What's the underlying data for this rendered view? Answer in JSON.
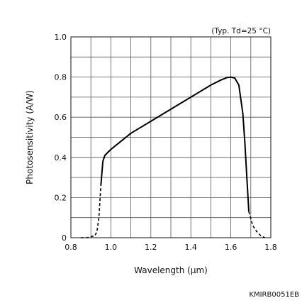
{
  "chart_data": {
    "type": "line",
    "title": "",
    "note": "(Typ. Td=25 °C)",
    "xlabel": "Wavelength (µm)",
    "ylabel": "Photosensitivity (A/W)",
    "xlim": [
      0.8,
      1.8
    ],
    "ylim": [
      0,
      1.0
    ],
    "x_ticks": [
      "0.8",
      "1.0",
      "1.2",
      "1.4",
      "1.6",
      "1.8"
    ],
    "y_ticks": [
      "0",
      "0.2",
      "0.4",
      "0.6",
      "0.8",
      "1.0"
    ],
    "grid": true,
    "series": [
      {
        "style": "dashed",
        "x": [
          0.85,
          0.88,
          0.9,
          0.92,
          0.93,
          0.94,
          0.95
        ],
        "y": [
          0.0,
          0.0,
          0.005,
          0.01,
          0.03,
          0.1,
          0.26
        ]
      },
      {
        "style": "solid",
        "x": [
          0.95,
          0.96,
          0.97,
          1.0,
          1.05,
          1.1,
          1.2,
          1.3,
          1.4,
          1.5,
          1.55,
          1.58,
          1.6,
          1.62,
          1.64,
          1.66,
          1.67,
          1.68,
          1.69
        ],
        "y": [
          0.26,
          0.38,
          0.41,
          0.44,
          0.48,
          0.52,
          0.58,
          0.64,
          0.7,
          0.76,
          0.785,
          0.797,
          0.8,
          0.795,
          0.76,
          0.62,
          0.48,
          0.3,
          0.13
        ]
      },
      {
        "style": "dashed",
        "x": [
          0.95,
          1.0
        ],
        "y": [
          0.0,
          0.0
        ],
        "hidden": true
      },
      {
        "style": "dashed",
        "x": [
          1.69,
          1.71,
          1.73,
          1.75,
          1.77
        ],
        "y": [
          0.13,
          0.06,
          0.03,
          0.01,
          0.0
        ]
      }
    ]
  },
  "figure_code": "KMIRB0051EB"
}
